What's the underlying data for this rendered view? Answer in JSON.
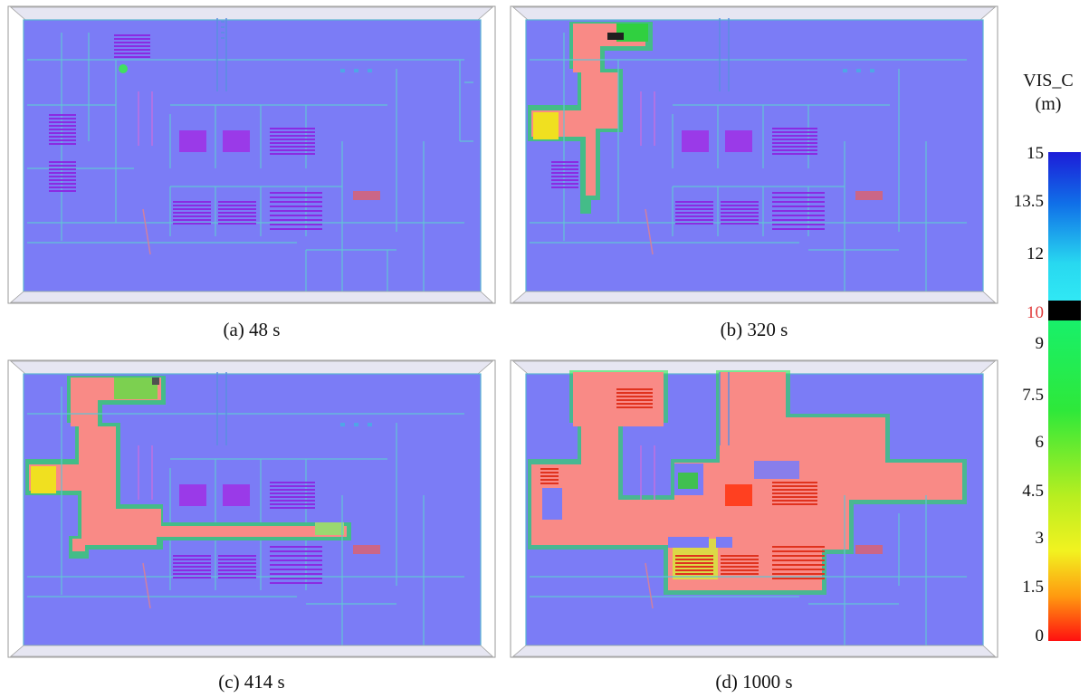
{
  "panels": [
    {
      "caption": "(a) 48 s"
    },
    {
      "caption": "(b) 320 s"
    },
    {
      "caption": "(c) 414 s"
    },
    {
      "caption": "(d) 1000 s"
    }
  ],
  "colorbar": {
    "title_line1": "VIS_C",
    "title_line2": "(m)",
    "ticks": [
      "15",
      "13.5",
      "12",
      "10",
      "9",
      "7.5",
      "6",
      "4.5",
      "3",
      "1.5",
      "0"
    ],
    "highlight_tick": "10",
    "colors": {
      "top": "#2020e0",
      "cyan": "#30e6f0",
      "marker": "#000000",
      "green": "#20e840",
      "yellow": "#f0f020",
      "bottom": "#ff1010"
    }
  },
  "colors": {
    "floor": "#7b7cf6",
    "smoke": "#f98a86",
    "wall": "#5ab4d2",
    "seat": "#8a2be2"
  }
}
